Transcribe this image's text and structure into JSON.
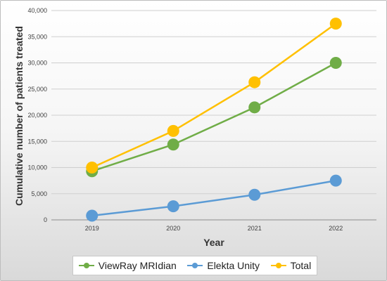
{
  "chart_data": {
    "type": "line",
    "title": "",
    "xlabel": "Year",
    "ylabel": "Cumulative number of patients treated",
    "categories": [
      "2019",
      "2020",
      "2021",
      "2022"
    ],
    "y_ticks": [
      "0",
      "5,000",
      "10,000",
      "15,000",
      "20,000",
      "25,000",
      "30,000",
      "35,000",
      "40,000"
    ],
    "ylim": [
      0,
      40000
    ],
    "grid": true,
    "legend_position": "bottom",
    "series": [
      {
        "name": "ViewRay MRIdian",
        "values": [
          9300,
          14400,
          21500,
          30000
        ],
        "color": "#70ad47"
      },
      {
        "name": "Elekta Unity",
        "values": [
          800,
          2600,
          4800,
          7500
        ],
        "color": "#5b9bd5"
      },
      {
        "name": "Total",
        "values": [
          10000,
          17000,
          26300,
          37500
        ],
        "color": "#ffc000"
      }
    ]
  }
}
